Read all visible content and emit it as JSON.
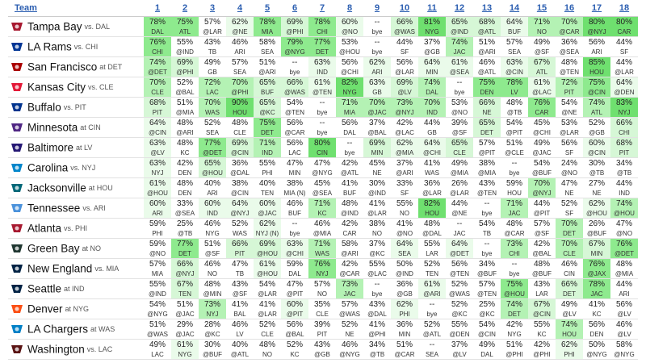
{
  "header": {
    "team_label": "Team",
    "weeks": [
      "1",
      "2",
      "3",
      "4",
      "5",
      "6",
      "7",
      "8",
      "9",
      "10",
      "11",
      "12",
      "13",
      "14",
      "15",
      "16",
      "17",
      "18"
    ]
  },
  "teams": [
    {
      "name": "Tampa Bay",
      "opp": "vs. DAL",
      "logo": "buccaneers-logo-icon",
      "color": "#a71930",
      "cells": [
        [
          "78%",
          "DAL"
        ],
        [
          "75%",
          "ATL"
        ],
        [
          "57%",
          "@LAR"
        ],
        [
          "62%",
          "@NE"
        ],
        [
          "78%",
          "MIA"
        ],
        [
          "69%",
          "@PHI"
        ],
        [
          "78%",
          "CHI"
        ],
        [
          "60%",
          "@NO"
        ],
        [
          "--",
          "bye"
        ],
        [
          "66%",
          "@WAS"
        ],
        [
          "81%",
          "NYG"
        ],
        [
          "65%",
          "@IND"
        ],
        [
          "68%",
          "@ATL"
        ],
        [
          "64%",
          "BUF"
        ],
        [
          "71%",
          "NO"
        ],
        [
          "70%",
          "@CAR"
        ],
        [
          "80%",
          "@NYJ"
        ],
        [
          "80%",
          "CAR"
        ]
      ]
    },
    {
      "name": "LA Rams",
      "opp": "vs. CHI",
      "logo": "rams-logo-icon",
      "color": "#003594",
      "cells": [
        [
          "76%",
          "CHI"
        ],
        [
          "55%",
          "@IND"
        ],
        [
          "43%",
          "TB"
        ],
        [
          "46%",
          "ARI"
        ],
        [
          "58%",
          "SEA"
        ],
        [
          "79%",
          "@NYG"
        ],
        [
          "77%",
          "DET"
        ],
        [
          "53%",
          "@HOU"
        ],
        [
          "--",
          "bye"
        ],
        [
          "44%",
          "SF"
        ],
        [
          "37%",
          "@GB"
        ],
        [
          "74%",
          "JAC"
        ],
        [
          "51%",
          "@ARI"
        ],
        [
          "57%",
          "SEA"
        ],
        [
          "49%",
          "@SF"
        ],
        [
          "36%",
          "@SEA"
        ],
        [
          "56%",
          "ARI"
        ],
        [
          "44%",
          "SF"
        ]
      ]
    },
    {
      "name": "San Francisco",
      "opp": "at DET",
      "logo": "49ers-logo-icon",
      "color": "#aa0000",
      "cells": [
        [
          "74%",
          "@DET"
        ],
        [
          "69%",
          "@PHI"
        ],
        [
          "49%",
          "GB"
        ],
        [
          "57%",
          "SEA"
        ],
        [
          "51%",
          "@ARI"
        ],
        [
          "--",
          "bye"
        ],
        [
          "63%",
          "IND"
        ],
        [
          "56%",
          "@CHI"
        ],
        [
          "62%",
          "ARI"
        ],
        [
          "56%",
          "@LAR"
        ],
        [
          "64%",
          "MIN"
        ],
        [
          "61%",
          "@SEA"
        ],
        [
          "46%",
          "@ATL"
        ],
        [
          "63%",
          "@CIN"
        ],
        [
          "67%",
          "ATL"
        ],
        [
          "48%",
          "@TEN"
        ],
        [
          "85%",
          "HOU"
        ],
        [
          "44%",
          "@LAR"
        ]
      ]
    },
    {
      "name": "Kansas City",
      "opp": "vs. CLE",
      "logo": "chiefs-logo-icon",
      "color": "#e31837",
      "cells": [
        [
          "70%",
          "CLE"
        ],
        [
          "52%",
          "@BAL"
        ],
        [
          "72%",
          "LAC"
        ],
        [
          "70%",
          "@PHI"
        ],
        [
          "65%",
          "BUF"
        ],
        [
          "66%",
          "@WAS"
        ],
        [
          "61%",
          "@TEN"
        ],
        [
          "82%",
          "NYG"
        ],
        [
          "63%",
          "GB"
        ],
        [
          "69%",
          "@LV"
        ],
        [
          "74%",
          "DAL"
        ],
        [
          "--",
          "bye"
        ],
        [
          "75%",
          "DEN"
        ],
        [
          "78%",
          "LV"
        ],
        [
          "61%",
          "@LAC"
        ],
        [
          "72%",
          "PIT"
        ],
        [
          "75%",
          "@CIN"
        ],
        [
          "64%",
          "@DEN"
        ]
      ]
    },
    {
      "name": "Buffalo",
      "opp": "vs. PIT",
      "logo": "bills-logo-icon",
      "color": "#00338d",
      "cells": [
        [
          "68%",
          "PIT"
        ],
        [
          "51%",
          "@MIA"
        ],
        [
          "70%",
          "WAS"
        ],
        [
          "90%",
          "HOU"
        ],
        [
          "65%",
          "@KC"
        ],
        [
          "54%",
          "@TEN"
        ],
        [
          "--",
          "bye"
        ],
        [
          "71%",
          "MIA"
        ],
        [
          "70%",
          "@JAC"
        ],
        [
          "73%",
          "@NYJ"
        ],
        [
          "70%",
          "IND"
        ],
        [
          "53%",
          "@NO"
        ],
        [
          "66%",
          "NE"
        ],
        [
          "48%",
          "@TB"
        ],
        [
          "76%",
          "CAR"
        ],
        [
          "54%",
          "@NE"
        ],
        [
          "74%",
          "ATL"
        ],
        [
          "83%",
          "NYJ"
        ]
      ]
    },
    {
      "name": "Minnesota",
      "opp": "at CIN",
      "logo": "vikings-logo-icon",
      "color": "#4f2683",
      "cells": [
        [
          "64%",
          "@CIN"
        ],
        [
          "48%",
          "@ARI"
        ],
        [
          "52%",
          "SEA"
        ],
        [
          "48%",
          "CLE"
        ],
        [
          "75%",
          "DET"
        ],
        [
          "56%",
          "@CAR"
        ],
        [
          "--",
          "bye"
        ],
        [
          "56%",
          "DAL"
        ],
        [
          "37%",
          "@BAL"
        ],
        [
          "42%",
          "@LAC"
        ],
        [
          "44%",
          "GB"
        ],
        [
          "39%",
          "@SF"
        ],
        [
          "65%",
          "DET"
        ],
        [
          "54%",
          "@PIT"
        ],
        [
          "45%",
          "@CHI"
        ],
        [
          "53%",
          "@LAR"
        ],
        [
          "52%",
          "@GB"
        ],
        [
          "66%",
          "CHI"
        ]
      ]
    },
    {
      "name": "Baltimore",
      "opp": "at LV",
      "logo": "ravens-logo-icon",
      "color": "#241773",
      "cells": [
        [
          "63%",
          "@LV"
        ],
        [
          "48%",
          "KC"
        ],
        [
          "77%",
          "@DET"
        ],
        [
          "69%",
          "@CIN"
        ],
        [
          "71%",
          "IND"
        ],
        [
          "56%",
          "LAC"
        ],
        [
          "80%",
          "CIN"
        ],
        [
          "--",
          "bye"
        ],
        [
          "69%",
          "MIN"
        ],
        [
          "62%",
          "@MIA"
        ],
        [
          "64%",
          "@CHI"
        ],
        [
          "65%",
          "CLE"
        ],
        [
          "57%",
          "@PIT"
        ],
        [
          "51%",
          "@CLE"
        ],
        [
          "49%",
          "@JAC"
        ],
        [
          "56%",
          "SF"
        ],
        [
          "60%",
          "@CIN"
        ],
        [
          "68%",
          "PIT"
        ]
      ]
    },
    {
      "name": "Carolina",
      "opp": "vs. NYJ",
      "logo": "panthers-logo-icon",
      "color": "#0085ca",
      "cells": [
        [
          "63%",
          "NYJ"
        ],
        [
          "42%",
          "DEN"
        ],
        [
          "65%",
          "@HOU"
        ],
        [
          "36%",
          "@DAL"
        ],
        [
          "55%",
          "PHI"
        ],
        [
          "47%",
          "MIN"
        ],
        [
          "47%",
          "@NYG"
        ],
        [
          "42%",
          "@ATL"
        ],
        [
          "45%",
          "NE"
        ],
        [
          "37%",
          "@ARI"
        ],
        [
          "41%",
          "WAS"
        ],
        [
          "49%",
          "@MIA"
        ],
        [
          "38%",
          "@MIA"
        ],
        [
          "--",
          "bye"
        ],
        [
          "54%",
          "@BUF"
        ],
        [
          "24%",
          "@NO"
        ],
        [
          "30%",
          "@TB"
        ],
        [
          "34%",
          "@TB"
        ]
      ]
    },
    {
      "name": "Jacksonville",
      "opp": "at HOU",
      "logo": "jaguars-logo-icon",
      "color": "#006778",
      "cells": [
        [
          "61%",
          "@HOU"
        ],
        [
          "48%",
          "DEN"
        ],
        [
          "40%",
          "ARI"
        ],
        [
          "38%",
          "@CIN"
        ],
        [
          "40%",
          "TEN"
        ],
        [
          "38%",
          "MIA (N)"
        ],
        [
          "45%",
          "@SEA"
        ],
        [
          "41%",
          "BUF"
        ],
        [
          "30%",
          "@IND"
        ],
        [
          "33%",
          "SF"
        ],
        [
          "36%",
          "@LAR"
        ],
        [
          "26%",
          "@LAR"
        ],
        [
          "43%",
          "@TEN"
        ],
        [
          "59%",
          "HOU"
        ],
        [
          "70%",
          "@NYJ"
        ],
        [
          "47%",
          "NE"
        ],
        [
          "27%",
          "NE"
        ],
        [
          "44%",
          "IND"
        ]
      ]
    },
    {
      "name": "Tennessee",
      "opp": "vs. ARI",
      "logo": "titans-logo-icon",
      "color": "#4b92db",
      "cells": [
        [
          "60%",
          "ARI"
        ],
        [
          "33%",
          "@SEA"
        ],
        [
          "60%",
          "IND"
        ],
        [
          "64%",
          "@NYJ"
        ],
        [
          "60%",
          "@JAC"
        ],
        [
          "46%",
          "BUF"
        ],
        [
          "71%",
          "KC"
        ],
        [
          "48%",
          "@IND"
        ],
        [
          "41%",
          "@LAR"
        ],
        [
          "55%",
          "NO"
        ],
        [
          "82%",
          "HOU"
        ],
        [
          "44%",
          "@NE"
        ],
        [
          "--",
          "bye"
        ],
        [
          "71%",
          "JAC"
        ],
        [
          "44%",
          "@PIT"
        ],
        [
          "52%",
          "SF"
        ],
        [
          "62%",
          "@HOU"
        ],
        [
          "74%",
          "@HOU"
        ]
      ]
    },
    {
      "name": "Atlanta",
      "opp": "vs. PHI",
      "logo": "falcons-logo-icon",
      "color": "#a71930",
      "cells": [
        [
          "59%",
          "PHI"
        ],
        [
          "25%",
          "@TB"
        ],
        [
          "46%",
          "NYG"
        ],
        [
          "52%",
          "WAS"
        ],
        [
          "62%",
          "NYJ (N)"
        ],
        [
          "--",
          "bye"
        ],
        [
          "46%",
          "@MIA"
        ],
        [
          "42%",
          "CAR"
        ],
        [
          "38%",
          "NO"
        ],
        [
          "41%",
          "@NO"
        ],
        [
          "48%",
          "@DAL"
        ],
        [
          "--",
          "JAC"
        ],
        [
          "54%",
          "TB"
        ],
        [
          "48%",
          "@CAR"
        ],
        [
          "57%",
          "@SF"
        ],
        [
          "70%",
          "DET"
        ],
        [
          "26%",
          "@BUF"
        ],
        [
          "47%",
          "@NO"
        ]
      ]
    },
    {
      "name": "Green Bay",
      "opp": "at NO",
      "logo": "packers-logo-icon",
      "color": "#203731",
      "cells": [
        [
          "59%",
          "@NO"
        ],
        [
          "77%",
          "DET"
        ],
        [
          "51%",
          "@SF"
        ],
        [
          "66%",
          "PIT"
        ],
        [
          "69%",
          "@HOU"
        ],
        [
          "63%",
          "@CHI"
        ],
        [
          "71%",
          "WAS"
        ],
        [
          "58%",
          "@ARI"
        ],
        [
          "37%",
          "@KC"
        ],
        [
          "64%",
          "SEA"
        ],
        [
          "55%",
          "LAR"
        ],
        [
          "64%",
          "@DET"
        ],
        [
          "--",
          "bye"
        ],
        [
          "73%",
          "CHI"
        ],
        [
          "42%",
          "@BAL"
        ],
        [
          "70%",
          "CLE"
        ],
        [
          "67%",
          "MIN"
        ],
        [
          "76%",
          "@DET"
        ]
      ]
    },
    {
      "name": "New England",
      "opp": "vs. MIA",
      "logo": "patriots-logo-icon",
      "color": "#002244",
      "cells": [
        [
          "57%",
          "MIA"
        ],
        [
          "66%",
          "@NYJ"
        ],
        [
          "46%",
          "NO"
        ],
        [
          "47%",
          "TB"
        ],
        [
          "61%",
          "@HOU"
        ],
        [
          "59%",
          "DAL"
        ],
        [
          "76%",
          "NYJ"
        ],
        [
          "42%",
          "@CAR"
        ],
        [
          "55%",
          "@LAC"
        ],
        [
          "50%",
          "@IND"
        ],
        [
          "52%",
          "TEN"
        ],
        [
          "56%",
          "@TEN"
        ],
        [
          "34%",
          "@BUF"
        ],
        [
          "--",
          "bye"
        ],
        [
          "48%",
          "@BUF"
        ],
        [
          "46%",
          "CIN"
        ],
        [
          "76%",
          "@JAX"
        ],
        [
          "48%",
          "@MIA"
        ]
      ]
    },
    {
      "name": "Seattle",
      "opp": "at IND",
      "logo": "seahawks-logo-icon",
      "color": "#002244",
      "cells": [
        [
          "55%",
          "@IND"
        ],
        [
          "67%",
          "TEN"
        ],
        [
          "48%",
          "@MIN"
        ],
        [
          "43%",
          "@SF"
        ],
        [
          "54%",
          "@LAR"
        ],
        [
          "47%",
          "@PIT"
        ],
        [
          "57%",
          "NO"
        ],
        [
          "73%",
          "JAC"
        ],
        [
          "--",
          "bye"
        ],
        [
          "36%",
          "@GB"
        ],
        [
          "61%",
          "@ARI"
        ],
        [
          "52%",
          "@WAS"
        ],
        [
          "57%",
          "@TEN"
        ],
        [
          "75%",
          "@HOU"
        ],
        [
          "43%",
          "LAR"
        ],
        [
          "66%",
          "DET"
        ],
        [
          "78%",
          "JAC"
        ],
        [
          "44%",
          "ARI"
        ]
      ]
    },
    {
      "name": "Denver",
      "opp": "at NYG",
      "logo": "broncos-logo-icon",
      "color": "#fb4f14",
      "cells": [
        [
          "54%",
          "@NYG"
        ],
        [
          "51%",
          "@JAC"
        ],
        [
          "73%",
          "NYJ"
        ],
        [
          "41%",
          "BAL"
        ],
        [
          "41%",
          "@LAR"
        ],
        [
          "60%",
          "@PIT"
        ],
        [
          "35%",
          "CLE"
        ],
        [
          "57%",
          "@WAS"
        ],
        [
          "43%",
          "@DAL"
        ],
        [
          "62%",
          "PHI"
        ],
        [
          "--",
          "bye"
        ],
        [
          "52%",
          "@KC"
        ],
        [
          "25%",
          "@KC"
        ],
        [
          "74%",
          "DET"
        ],
        [
          "67%",
          "@CIN"
        ],
        [
          "49%",
          "@LV"
        ],
        [
          "41%",
          "KC"
        ],
        [
          "56%",
          "@LV"
        ]
      ]
    },
    {
      "name": "LA Chargers",
      "opp": "at WAS",
      "logo": "chargers-logo-icon",
      "color": "#0080c6",
      "cells": [
        [
          "51%",
          "@WAS"
        ],
        [
          "29%",
          "@JAC"
        ],
        [
          "28%",
          "@KC"
        ],
        [
          "46%",
          "LV"
        ],
        [
          "52%",
          "CLE"
        ],
        [
          "56%",
          "@BAL"
        ],
        [
          "39%",
          "PIT"
        ],
        [
          "52%",
          "NE"
        ],
        [
          "41%",
          "@PHI"
        ],
        [
          "36%",
          "MIN"
        ],
        [
          "52%",
          "@ATL"
        ],
        [
          "55%",
          "@DEN"
        ],
        [
          "54%",
          "@CIN"
        ],
        [
          "42%",
          "NYG"
        ],
        [
          "55%",
          "KC"
        ],
        [
          "74%",
          "HOU"
        ],
        [
          "56%",
          "DEN"
        ],
        [
          "46%",
          "@LV"
        ]
      ]
    },
    {
      "name": "Washington",
      "opp": "vs. LAC",
      "logo": "commanders-logo-icon",
      "color": "#5a1414",
      "cells": [
        [
          "49%",
          "LAC"
        ],
        [
          "61%",
          "NYG"
        ],
        [
          "30%",
          "@BUF"
        ],
        [
          "40%",
          "@ATL"
        ],
        [
          "48%",
          "NO"
        ],
        [
          "52%",
          "KC"
        ],
        [
          "43%",
          "@GB"
        ],
        [
          "46%",
          "@NYG"
        ],
        [
          "34%",
          "@TB"
        ],
        [
          "51%",
          "@CAR"
        ],
        [
          "--",
          "SEA"
        ],
        [
          "37%",
          "@LV"
        ],
        [
          "49%",
          "DAL"
        ],
        [
          "51%",
          "@PHI"
        ],
        [
          "42%",
          "@PHI"
        ],
        [
          "62%",
          "PHI"
        ],
        [
          "50%",
          "@NYG"
        ],
        [
          "58%",
          "@NYG"
        ]
      ]
    }
  ]
}
